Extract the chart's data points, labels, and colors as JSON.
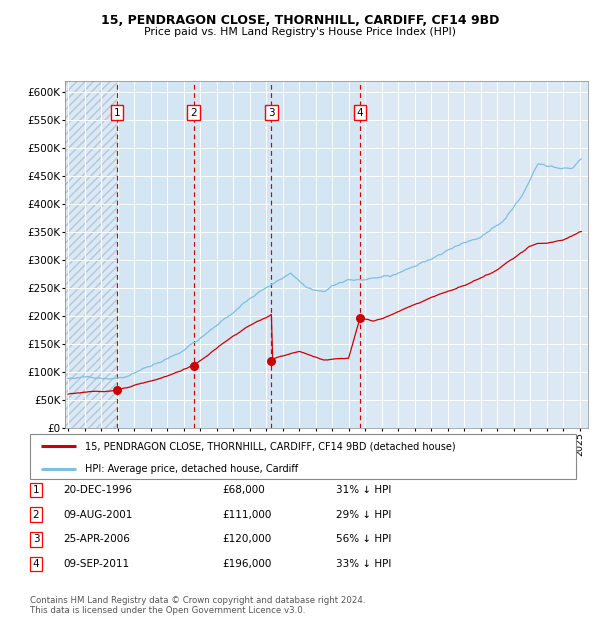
{
  "title1": "15, PENDRAGON CLOSE, THORNHILL, CARDIFF, CF14 9BD",
  "title2": "Price paid vs. HM Land Registry's House Price Index (HPI)",
  "ylim": [
    0,
    620000
  ],
  "ytick_vals": [
    0,
    50000,
    100000,
    150000,
    200000,
    250000,
    300000,
    350000,
    400000,
    450000,
    500000,
    550000,
    600000
  ],
  "xlim_start": 1993.8,
  "xlim_end": 2025.5,
  "plot_bg_color": "#dce9f5",
  "grid_color": "#ffffff",
  "hpi_color": "#7fbfdf",
  "price_color": "#cc0000",
  "sale_dates_decimal": [
    1996.97,
    2001.61,
    2006.32,
    2011.69
  ],
  "sale_prices": [
    68000,
    111000,
    120000,
    196000
  ],
  "sale_labels": [
    "1",
    "2",
    "3",
    "4"
  ],
  "vline_color": "#cc0000",
  "legend_label_price": "15, PENDRAGON CLOSE, THORNHILL, CARDIFF, CF14 9BD (detached house)",
  "legend_label_hpi": "HPI: Average price, detached house, Cardiff",
  "table_rows": [
    [
      "1",
      "20-DEC-1996",
      "£68,000",
      "31% ↓ HPI"
    ],
    [
      "2",
      "09-AUG-2001",
      "£111,000",
      "29% ↓ HPI"
    ],
    [
      "3",
      "25-APR-2006",
      "£120,000",
      "56% ↓ HPI"
    ],
    [
      "4",
      "09-SEP-2011",
      "£196,000",
      "33% ↓ HPI"
    ]
  ],
  "footnote": "Contains HM Land Registry data © Crown copyright and database right 2024.\nThis data is licensed under the Open Government Licence v3.0.",
  "hpi_anchors_y": [
    1994.0,
    1995.0,
    1996.0,
    1997.5,
    1999.0,
    2001.0,
    2003.0,
    2004.5,
    2005.5,
    2006.5,
    2007.5,
    2008.5,
    2009.5,
    2011.0,
    2013.0,
    2015.0,
    2017.0,
    2019.0,
    2020.5,
    2021.5,
    2022.5,
    2023.5,
    2024.5,
    2025.1
  ],
  "hpi_anchors_v": [
    88000,
    92000,
    96000,
    102000,
    120000,
    148000,
    195000,
    235000,
    258000,
    278000,
    298000,
    272000,
    262000,
    285000,
    294000,
    318000,
    345000,
    368000,
    400000,
    440000,
    498000,
    492000,
    490000,
    510000
  ],
  "price_anchors_y": [
    1994.0,
    1995.5,
    1996.97,
    1998.0,
    2000.0,
    2001.61,
    2002.5,
    2003.5,
    2004.5,
    2005.5,
    2006.32,
    2006.33,
    2007.0,
    2008.0,
    2009.5,
    2010.5,
    2011.0,
    2011.69,
    2012.5,
    2014.0,
    2016.0,
    2018.0,
    2020.0,
    2022.0,
    2022.5,
    2023.0,
    2024.0,
    2025.0
  ],
  "price_anchors_v": [
    60000,
    64000,
    68000,
    77000,
    92000,
    111000,
    130000,
    152000,
    172000,
    190000,
    200000,
    120000,
    126000,
    134000,
    120000,
    122000,
    122000,
    196000,
    190000,
    205000,
    230000,
    252000,
    278000,
    320000,
    325000,
    325000,
    330000,
    345000
  ]
}
